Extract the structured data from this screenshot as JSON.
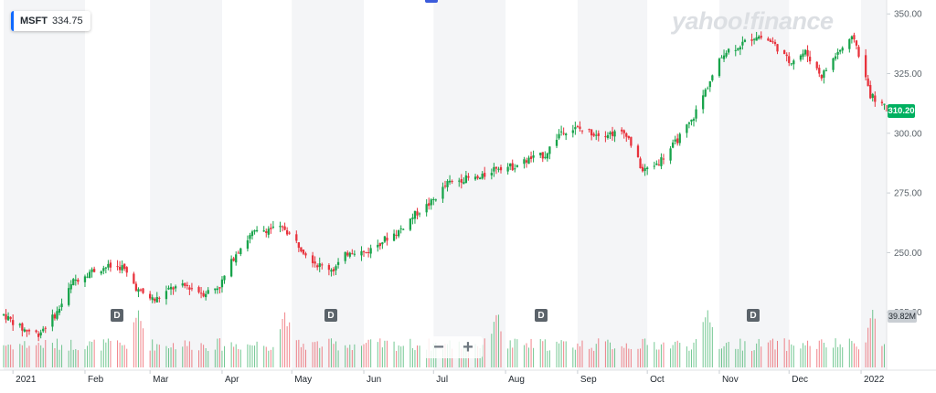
{
  "symbol": {
    "ticker": "MSFT",
    "price": "334.75"
  },
  "watermark": "yahoo!finance",
  "last_price_label": "310.20",
  "volume_label": "39.82M",
  "dividend_marker_label": "D",
  "zoom": {
    "out": "−",
    "in": "+"
  },
  "colors": {
    "up": "#17a34a",
    "down": "#e8323c",
    "last_price": "#00b060",
    "accent": "#0f69ff"
  },
  "chart_data": {
    "type": "candlestick",
    "x_axis": {
      "type": "date",
      "range": [
        "2020-12-28",
        "2022-01-12"
      ]
    },
    "y_axis": {
      "range": [
        218,
        352
      ],
      "ticks": [
        225,
        250,
        275,
        300,
        325,
        350
      ],
      "position": "right"
    },
    "x_tick_labels": [
      "2021",
      "Feb",
      "Mar",
      "Apr",
      "May",
      "Jun",
      "Jul",
      "Aug",
      "Sep",
      "Oct",
      "Nov",
      "Dec",
      "2022"
    ],
    "x_tick_dates": [
      "2021-01-01",
      "2021-02-01",
      "2021-03-01",
      "2021-04-01",
      "2021-05-01",
      "2021-06-01",
      "2021-07-01",
      "2021-08-01",
      "2021-09-01",
      "2021-10-01",
      "2021-11-01",
      "2021-12-01",
      "2022-01-01"
    ],
    "grid": false,
    "shaded_months": true,
    "dividend_dates": [
      "2021-02-17",
      "2021-05-19",
      "2021-08-18",
      "2021-11-17"
    ],
    "close_series": [
      {
        "date": "2020-12-28",
        "close": 224
      },
      {
        "date": "2021-01-05",
        "close": 218
      },
      {
        "date": "2021-01-12",
        "close": 216
      },
      {
        "date": "2021-01-20",
        "close": 225
      },
      {
        "date": "2021-01-27",
        "close": 238
      },
      {
        "date": "2021-02-03",
        "close": 242
      },
      {
        "date": "2021-02-10",
        "close": 244
      },
      {
        "date": "2021-02-17",
        "close": 244
      },
      {
        "date": "2021-02-24",
        "close": 234
      },
      {
        "date": "2021-03-03",
        "close": 230
      },
      {
        "date": "2021-03-10",
        "close": 235
      },
      {
        "date": "2021-03-17",
        "close": 236
      },
      {
        "date": "2021-03-24",
        "close": 233
      },
      {
        "date": "2021-03-31",
        "close": 236
      },
      {
        "date": "2021-04-07",
        "close": 250
      },
      {
        "date": "2021-04-14",
        "close": 258
      },
      {
        "date": "2021-04-21",
        "close": 260
      },
      {
        "date": "2021-04-28",
        "close": 260
      },
      {
        "date": "2021-05-05",
        "close": 252
      },
      {
        "date": "2021-05-12",
        "close": 245
      },
      {
        "date": "2021-05-19",
        "close": 243
      },
      {
        "date": "2021-05-26",
        "close": 251
      },
      {
        "date": "2021-06-02",
        "close": 250
      },
      {
        "date": "2021-06-09",
        "close": 255
      },
      {
        "date": "2021-06-16",
        "close": 259
      },
      {
        "date": "2021-06-23",
        "close": 266
      },
      {
        "date": "2021-06-30",
        "close": 271
      },
      {
        "date": "2021-07-07",
        "close": 279
      },
      {
        "date": "2021-07-14",
        "close": 281
      },
      {
        "date": "2021-07-21",
        "close": 281
      },
      {
        "date": "2021-07-28",
        "close": 286
      },
      {
        "date": "2021-08-04",
        "close": 286
      },
      {
        "date": "2021-08-11",
        "close": 289
      },
      {
        "date": "2021-08-18",
        "close": 291
      },
      {
        "date": "2021-08-25",
        "close": 301
      },
      {
        "date": "2021-09-01",
        "close": 302
      },
      {
        "date": "2021-09-08",
        "close": 300
      },
      {
        "date": "2021-09-15",
        "close": 300
      },
      {
        "date": "2021-09-22",
        "close": 300
      },
      {
        "date": "2021-09-29",
        "close": 284
      },
      {
        "date": "2021-10-06",
        "close": 288
      },
      {
        "date": "2021-10-13",
        "close": 296
      },
      {
        "date": "2021-10-20",
        "close": 305
      },
      {
        "date": "2021-10-27",
        "close": 320
      },
      {
        "date": "2021-11-03",
        "close": 334
      },
      {
        "date": "2021-11-10",
        "close": 337
      },
      {
        "date": "2021-11-17",
        "close": 341
      },
      {
        "date": "2021-11-24",
        "close": 338
      },
      {
        "date": "2021-12-01",
        "close": 330
      },
      {
        "date": "2021-12-08",
        "close": 334
      },
      {
        "date": "2021-12-15",
        "close": 324
      },
      {
        "date": "2021-12-22",
        "close": 334
      },
      {
        "date": "2021-12-29",
        "close": 340
      },
      {
        "date": "2022-01-05",
        "close": 316
      },
      {
        "date": "2022-01-12",
        "close": 310
      }
    ],
    "volume_peaks_dates": [
      "2021-02-24",
      "2021-04-28",
      "2021-07-28",
      "2021-10-27",
      "2022-01-06"
    ]
  }
}
